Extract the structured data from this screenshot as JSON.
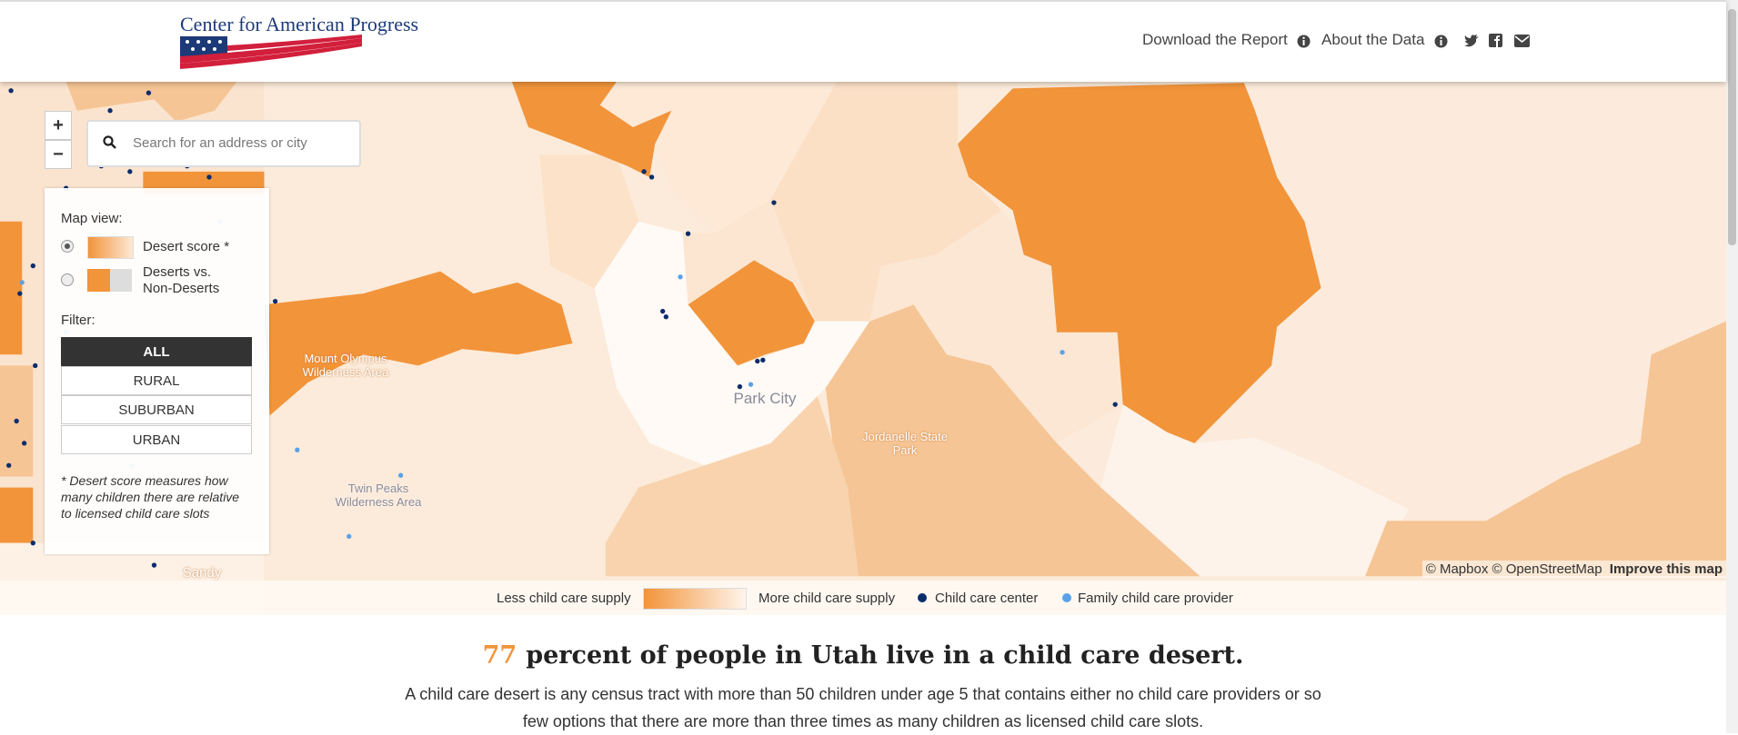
{
  "header": {
    "logo": "Center for American Progress",
    "nav": [
      "Download the Report",
      "About the Data"
    ]
  },
  "search": {
    "placeholder": "Search for an address or city"
  },
  "zoom": [
    "+",
    "−"
  ],
  "panel": {
    "map_view_label": "Map view:",
    "options": [
      "Desert score *",
      "Deserts vs. Non-Deserts"
    ],
    "filter_label": "Filter:",
    "filters": [
      "ALL",
      "RURAL",
      "SUBURBAN",
      "URBAN"
    ],
    "note": "* Desert score measures how many children there are relative to licensed child care slots"
  },
  "map_labels": [
    "Mount Olympus Wilderness Area",
    "Park City",
    "Jordanelle State Park",
    "Twin Peaks Wilderness Area",
    "Sandy"
  ],
  "attribution": {
    "mapbox": "© Mapbox",
    "osm": "© OpenStreetMap",
    "improve": "Improve this map"
  },
  "legend": [
    "Less child care supply",
    "More child care supply",
    "Child care center",
    "Family child care provider"
  ],
  "headline": {
    "number": 77,
    "text": "percent of people in Utah live in a child care desert."
  },
  "description": "A child care desert is any census tract with more than 50 children under age 5 that contains either no child care providers or so few options that there are more than three times as many children as licensed child care slots."
}
